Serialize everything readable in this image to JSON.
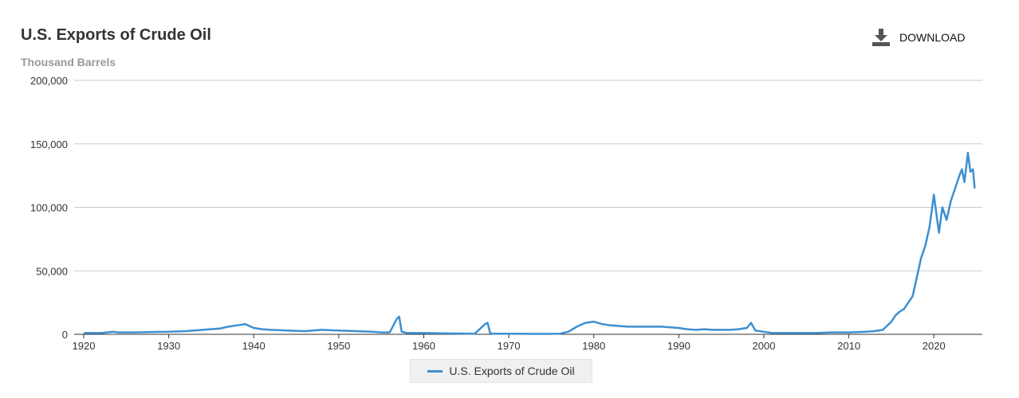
{
  "header": {
    "title": "U.S. Exports of Crude Oil",
    "subtitle": "Thousand Barrels",
    "download_label": "DOWNLOAD",
    "download_icon": "download-icon"
  },
  "colors": {
    "series": "#3d8fd1",
    "grid": "#cccccc",
    "axis": "#333333"
  },
  "chart_data": {
    "type": "line",
    "title": "U.S. Exports of Crude Oil",
    "ylabel": "Thousand Barrels",
    "xlabel": "",
    "xlim": [
      1920,
      2025.7
    ],
    "ylim": [
      0,
      200000
    ],
    "x_ticks": [
      1920,
      1930,
      1940,
      1950,
      1960,
      1970,
      1980,
      1990,
      2000,
      2010,
      2020
    ],
    "y_ticks": [
      0,
      50000,
      100000,
      150000,
      200000
    ],
    "y_tick_labels": [
      "0",
      "50,000",
      "100,000",
      "150,000",
      "200,000"
    ],
    "grid": true,
    "legend": "bottom",
    "series": [
      {
        "name": "U.S. Exports of Crude Oil",
        "x": [
          1920,
          1922,
          1923.5,
          1924,
          1926,
          1928,
          1930,
          1932,
          1934,
          1936,
          1937,
          1938,
          1939,
          1940,
          1941,
          1942,
          1944,
          1946,
          1948,
          1950,
          1952,
          1954,
          1955,
          1956,
          1956.8,
          1957.1,
          1957.4,
          1958,
          1960,
          1962,
          1964,
          1966,
          1967.2,
          1967.5,
          1967.8,
          1968,
          1970,
          1972,
          1974,
          1976,
          1977,
          1978,
          1979,
          1980,
          1981,
          1982,
          1984,
          1986,
          1988,
          1990,
          1991,
          1992,
          1993,
          1994,
          1996,
          1997,
          1998,
          1998.5,
          1999,
          2000,
          2001,
          2002,
          2004,
          2006,
          2008,
          2010,
          2012,
          2013,
          2014,
          2015,
          2015.5,
          2016,
          2016.5,
          2017,
          2017.5,
          2018,
          2018.5,
          2019,
          2019.5,
          2020,
          2020.3,
          2020.6,
          2021,
          2021.5,
          2022,
          2022.5,
          2023,
          2023.3,
          2023.6,
          2024,
          2024.3,
          2024.6,
          2024.8
        ],
        "y": [
          1000,
          1000,
          2000,
          1500,
          1500,
          1800,
          2000,
          2500,
          3500,
          4500,
          6000,
          7000,
          8000,
          5000,
          4000,
          3500,
          3000,
          2500,
          3500,
          3000,
          2500,
          2000,
          1500,
          1500,
          12000,
          14000,
          2000,
          1000,
          1000,
          800,
          600,
          500,
          8000,
          9000,
          1000,
          500,
          500,
          400,
          300,
          500,
          2000,
          6000,
          9000,
          10000,
          8000,
          7000,
          6000,
          6000,
          6000,
          5000,
          4000,
          3500,
          4000,
          3500,
          3500,
          4000,
          5000,
          9000,
          3000,
          2000,
          1000,
          1000,
          1000,
          1000,
          1500,
          1500,
          2000,
          2500,
          3500,
          10000,
          15000,
          18000,
          20000,
          25000,
          30000,
          45000,
          60000,
          70000,
          85000,
          110000,
          95000,
          80000,
          100000,
          90000,
          105000,
          115000,
          125000,
          130000,
          120000,
          143000,
          128000,
          130000,
          115000
        ]
      }
    ]
  },
  "legend": {
    "label": "U.S. Exports of Crude Oil"
  }
}
